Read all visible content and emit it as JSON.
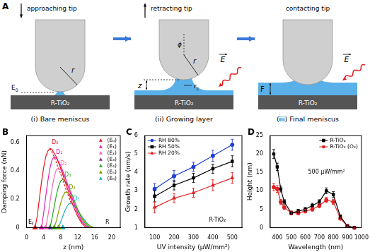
{
  "diagram": {
    "label": "A",
    "substrate": "R-TiO₂",
    "steps": [
      {
        "tip_label": "approaching tip",
        "caption": "(i) Bare meniscus",
        "symbols": [
          {
            "text": "r"
          },
          {
            "text": "E",
            "sub": "0"
          }
        ]
      },
      {
        "tip_label": "retracting tip",
        "caption": "(ii) Growing layer",
        "symbols": [
          {
            "text": "ϕ"
          },
          {
            "text": "r"
          },
          {
            "text": "r",
            "sub": "c"
          },
          {
            "text": "z"
          },
          {
            "text": "E"
          }
        ]
      },
      {
        "tip_label": "contacting tip",
        "caption": "(iii) Final meniscus",
        "symbols": [
          {
            "text": "E"
          },
          {
            "text": "F"
          }
        ]
      }
    ]
  },
  "chart_data": [
    {
      "type": "line",
      "panel_label": "B",
      "x_label": "z (nm)",
      "y_label": "Damping force (nN)",
      "xlim": [
        0,
        22
      ],
      "xticks": [
        0,
        4,
        8,
        12,
        16,
        20
      ],
      "ylim": [
        0,
        0.65
      ],
      "yticks": [
        0,
        0.2,
        0.4,
        0.6
      ],
      "grid": false,
      "legend": "top-right",
      "series": [
        {
          "color": "#e8141c",
          "x": [
            2,
            2.5,
            3,
            3.5,
            4,
            4.5,
            5,
            5.5,
            6,
            7,
            8,
            9,
            10,
            11,
            12,
            13,
            14
          ],
          "values": [
            0,
            0.08,
            0.2,
            0.32,
            0.42,
            0.5,
            0.54,
            0.56,
            0.55,
            0.5,
            0.42,
            0.33,
            0.24,
            0.15,
            0.08,
            0.03,
            0
          ]
        },
        {
          "color": "#e020c0",
          "x": [
            3.5,
            4,
            4.5,
            5,
            5.5,
            6,
            6.5,
            7,
            8,
            9,
            10,
            11,
            12,
            13,
            14,
            15
          ],
          "values": [
            0,
            0.1,
            0.22,
            0.33,
            0.42,
            0.48,
            0.5,
            0.49,
            0.44,
            0.36,
            0.27,
            0.18,
            0.1,
            0.04,
            0.01,
            0
          ]
        },
        {
          "color": "#ff69b4",
          "x": [
            4.5,
            5,
            5.5,
            6,
            6.5,
            7,
            7.5,
            8,
            9,
            10,
            11,
            12,
            13,
            14,
            15
          ],
          "values": [
            0,
            0.08,
            0.18,
            0.28,
            0.36,
            0.41,
            0.42,
            0.41,
            0.36,
            0.28,
            0.19,
            0.11,
            0.05,
            0.01,
            0
          ]
        },
        {
          "color": "#22aa22",
          "x": [
            5.5,
            6,
            6.5,
            7,
            7.5,
            8,
            8.5,
            9,
            10,
            11,
            12,
            13,
            14,
            15
          ],
          "values": [
            0,
            0.07,
            0.15,
            0.23,
            0.29,
            0.33,
            0.34,
            0.33,
            0.28,
            0.21,
            0.13,
            0.06,
            0.02,
            0
          ]
        },
        {
          "color": "#88a000",
          "x": [
            6.5,
            7,
            7.5,
            8,
            8.5,
            9,
            9.5,
            10,
            11,
            12,
            13,
            14,
            15,
            16
          ],
          "values": [
            0,
            0.05,
            0.11,
            0.17,
            0.22,
            0.25,
            0.25,
            0.24,
            0.19,
            0.13,
            0.07,
            0.03,
            0.01,
            0
          ]
        },
        {
          "color": "#20b0c0",
          "x": [
            7.5,
            8,
            8.5,
            9,
            9.5,
            10,
            10.5,
            11,
            12,
            13,
            14,
            15,
            16
          ],
          "values": [
            0,
            0.04,
            0.08,
            0.12,
            0.15,
            0.17,
            0.17,
            0.16,
            0.12,
            0.08,
            0.04,
            0.01,
            0
          ]
        },
        {
          "color": "#e8141c",
          "line_style": "dashed",
          "x": [
            5.5,
            6.5,
            7.5,
            8.5,
            9.5,
            10.5
          ],
          "values": [
            0.56,
            0.5,
            0.42,
            0.34,
            0.25,
            0.17
          ]
        },
        {
          "name": "(E₀)",
          "type": "scatter",
          "marker": "triangle",
          "color": "#e8141c",
          "x": [
            2
          ],
          "values": [
            0
          ]
        },
        {
          "name": "(E₁)",
          "type": "scatter",
          "marker": "triangle",
          "color": "#e020c0",
          "x": [
            3.5
          ],
          "values": [
            0
          ]
        },
        {
          "name": "(E₂)",
          "type": "scatter",
          "marker": "triangle",
          "color": "#ff69b4",
          "x": [
            4.5
          ],
          "values": [
            0
          ]
        },
        {
          "name": "(E₃)",
          "type": "scatter",
          "marker": "triangle",
          "color": "#7030a0",
          "x": [
            5.5
          ],
          "values": [
            0
          ]
        },
        {
          "name": "(E₄)",
          "type": "scatter",
          "marker": "triangle",
          "color": "#22aa22",
          "x": [
            6.5
          ],
          "values": [
            0
          ]
        },
        {
          "name": "(E₅)",
          "type": "scatter",
          "marker": "triangle",
          "color": "#88a000",
          "x": [
            7.5
          ],
          "values": [
            0
          ]
        },
        {
          "name": "(E₆)",
          "type": "scatter",
          "marker": "triangle",
          "color": "#20b0c0",
          "x": [
            8.5
          ],
          "values": [
            0
          ]
        }
      ],
      "annotations": [
        {
          "text": "D₀",
          "x": 5.9,
          "y": 0.6,
          "color": "#e8141c"
        },
        {
          "text": "D₁",
          "x": 6.9,
          "y": 0.53,
          "color": "#e020c0"
        },
        {
          "text": "D₂",
          "x": 7.9,
          "y": 0.45,
          "color": "#ff69b4"
        },
        {
          "text": "D₃",
          "x": 8.9,
          "y": 0.37,
          "color": "#22aa22"
        },
        {
          "text": "D₄",
          "x": 9.9,
          "y": 0.28,
          "color": "#88a000"
        },
        {
          "text": "D₅",
          "x": 10.9,
          "y": 0.2,
          "color": "#20b0c0"
        },
        {
          "text": "E",
          "sub": "f",
          "x": 0.4,
          "y": 0.04
        },
        {
          "text": "R",
          "x": 18.5,
          "y": 0.04
        }
      ]
    },
    {
      "type": "line",
      "panel_label": "C",
      "x_label": "UV intensity (μW/mm²)",
      "y_label": "Growth rate (nm/s)",
      "xlim": [
        50,
        550
      ],
      "xticks": [
        100,
        200,
        300,
        400,
        500
      ],
      "ylim": [
        1,
        6
      ],
      "yticks": [
        1,
        2,
        3,
        4,
        5,
        6
      ],
      "grid": false,
      "legend": "top-left",
      "x": [
        100,
        200,
        300,
        400,
        500
      ],
      "series": [
        {
          "name": "RH 80%",
          "color": "#1f3fd0",
          "marker": "circle",
          "values": [
            3.1,
            3.8,
            4.3,
            4.9,
            5.5
          ],
          "errors": [
            0.3,
            0.3,
            0.25,
            0.3,
            0.3
          ]
        },
        {
          "name": "RH 50%",
          "color": "#000000",
          "marker": "square",
          "values": [
            2.7,
            3.3,
            3.7,
            4.2,
            4.6
          ],
          "errors": [
            0.3,
            0.25,
            0.25,
            0.25,
            0.3
          ]
        },
        {
          "name": "RH 20%",
          "color": "#e02020",
          "marker": "triangle",
          "values": [
            2.1,
            2.6,
            2.9,
            3.3,
            3.7
          ],
          "errors": [
            0.3,
            0.25,
            0.25,
            0.3,
            0.3
          ]
        }
      ],
      "annotations": [
        {
          "text": "R-TiO₂",
          "x": 380,
          "y": 1.4
        }
      ]
    },
    {
      "type": "line",
      "panel_label": "D",
      "x_label": "Wavelength (nm)",
      "y_label": "Height (nm)",
      "xlim": [
        350,
        1000
      ],
      "xticks": [
        400,
        500,
        600,
        700,
        800,
        900,
        1000
      ],
      "ylim": [
        0,
        25
      ],
      "yticks": [
        0,
        5,
        10,
        15,
        20,
        25
      ],
      "grid": false,
      "legend": "top-right",
      "x": [
        375,
        400,
        425,
        450,
        500,
        550,
        600,
        650,
        700,
        750,
        800,
        850,
        900,
        950
      ],
      "series": [
        {
          "name": "R-TiO₂",
          "color": "#000000",
          "marker": "square",
          "values": [
            20,
            16.5,
            10.5,
            7,
            4,
            4.5,
            5,
            6,
            7,
            10,
            9,
            3,
            0.5,
            0
          ],
          "errors": [
            1.2,
            1,
            0.8,
            0.6,
            0.5,
            0.5,
            0.5,
            0.6,
            0.6,
            0.8,
            0.8,
            0.5,
            0.3,
            0.2
          ]
        },
        {
          "name": "R-TiO₂ (O₂)",
          "color": "#e02020",
          "marker": "circle",
          "values": [
            11,
            10.5,
            7,
            5.5,
            4,
            4,
            4.5,
            5,
            6,
            7.5,
            7,
            2.5,
            0.5,
            0
          ],
          "errors": [
            1,
            0.9,
            0.7,
            0.5,
            0.5,
            0.5,
            0.5,
            0.5,
            0.6,
            0.7,
            0.7,
            0.4,
            0.3,
            0.2
          ]
        }
      ],
      "annotations": [
        {
          "text": "500 μW/mm²",
          "x": 620,
          "y": 15
        }
      ]
    }
  ]
}
